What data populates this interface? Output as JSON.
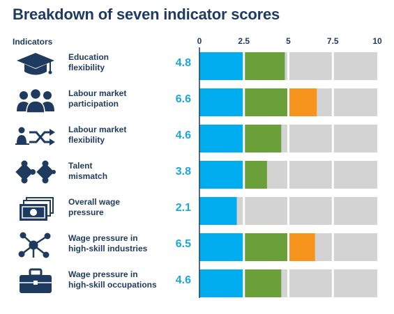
{
  "title": "Breakdown of seven indicator scores",
  "indicators_header": "Indicators",
  "colors": {
    "text": "#1f3a5f",
    "score": "#1aa7d8",
    "bands": [
      "#00aeef",
      "#6a9f3a",
      "#f7941d"
    ],
    "remainder": "#d3d3d3"
  },
  "chart_data": {
    "type": "bar",
    "orientation": "horizontal",
    "stacked_bands": [
      2.5,
      5,
      7.5
    ],
    "xlim": [
      0,
      10
    ],
    "xticks": [
      "0",
      "2.5",
      "5",
      "7.5",
      "10"
    ],
    "categories": [
      "Education flexibility",
      "Labour market participation",
      "Labour market flexibility",
      "Talent mismatch",
      "Overall wage pressure",
      "Wage pressure in high-skill industries",
      "Wage pressure in high-skill occupations"
    ],
    "values": [
      4.8,
      6.6,
      4.6,
      3.8,
      2.1,
      6.5,
      4.6
    ]
  },
  "rows": [
    {
      "label_lines": [
        "Education",
        "flexibility"
      ],
      "score": "4.8",
      "icon": "graduation-cap-icon"
    },
    {
      "label_lines": [
        "Labour market",
        "participation"
      ],
      "score": "6.6",
      "icon": "people-group-icon"
    },
    {
      "label_lines": [
        "Labour market",
        "flexibility"
      ],
      "score": "4.6",
      "icon": "person-shuffle-icon"
    },
    {
      "label_lines": [
        "Talent",
        "mismatch"
      ],
      "score": "3.8",
      "icon": "puzzle-pieces-icon"
    },
    {
      "label_lines": [
        "Overall wage",
        "pressure"
      ],
      "score": "2.1",
      "icon": "banknotes-icon"
    },
    {
      "label_lines": [
        "Wage pressure in",
        "high-skill industries"
      ],
      "score": "6.5",
      "icon": "network-nodes-icon"
    },
    {
      "label_lines": [
        "Wage pressure in",
        "high-skill occupations"
      ],
      "score": "4.6",
      "icon": "briefcase-icon"
    }
  ]
}
